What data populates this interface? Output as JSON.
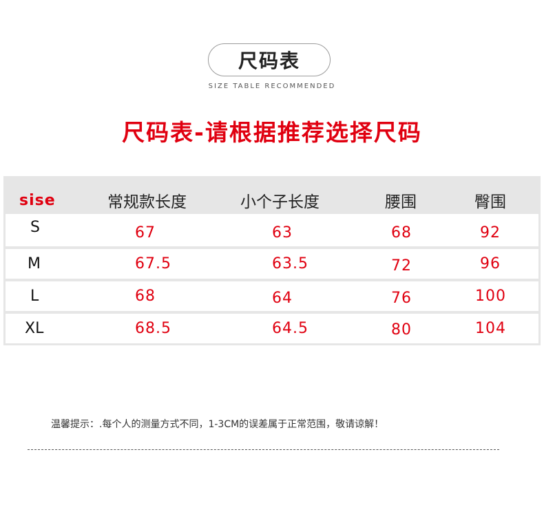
{
  "badge": {
    "title": "尺码表",
    "subtitle": "SIZE TABLE RECOMMENDED"
  },
  "headline": "尺码表-请根据推荐选择尺码",
  "table": {
    "headers": [
      "sise",
      "常规款长度",
      "小个子长度",
      "腰围",
      "臀围"
    ],
    "rows": [
      [
        "S",
        "67",
        "63",
        "68",
        "92"
      ],
      [
        "M",
        "67.5",
        "63.5",
        "72",
        "96"
      ],
      [
        "L",
        "68",
        "64",
        "76",
        "100"
      ],
      [
        "XL",
        "68.5",
        "64.5",
        "80",
        "104"
      ]
    ]
  },
  "note": "温馨提示：.每个人的测量方式不同，1-3CM的误差属于正常范围，敬请谅解！",
  "colors": {
    "accent": "#e00010",
    "header_bg": "#e6e6e6"
  }
}
